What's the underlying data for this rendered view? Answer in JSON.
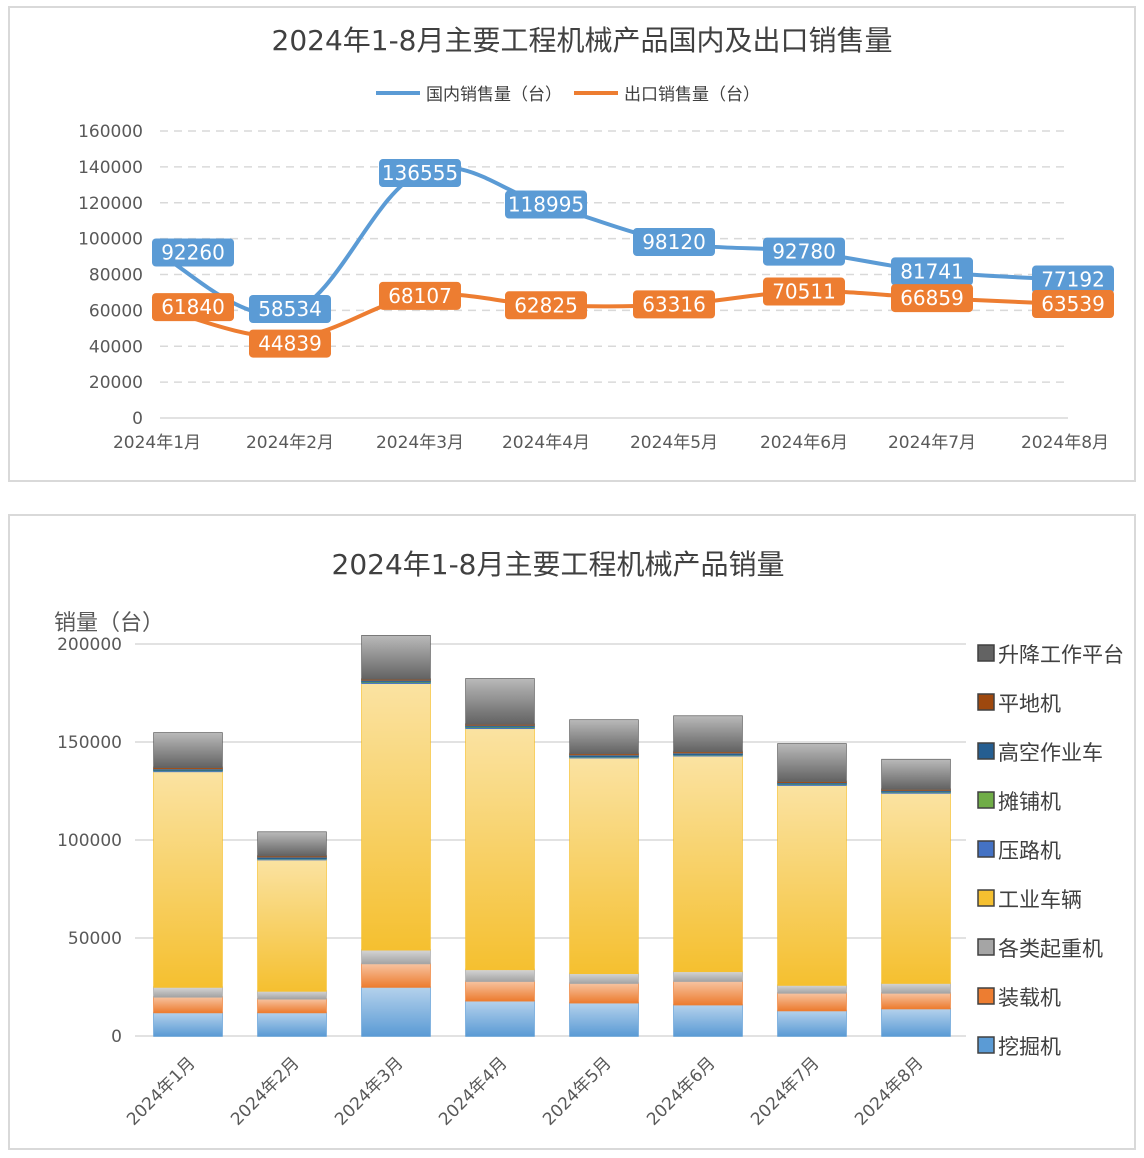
{
  "chart_data": [
    {
      "type": "line",
      "title": "2024年1-8月主要工程机械产品国内及出口销售量",
      "categories": [
        "2024年1月",
        "2024年2月",
        "2024年3月",
        "2024年4月",
        "2024年5月",
        "2024年6月",
        "2024年7月",
        "2024年8月"
      ],
      "series": [
        {
          "name": "国内销售量（台）",
          "color": "#5b9bd5",
          "values": [
            92260,
            58534,
            136555,
            118995,
            98120,
            92780,
            81741,
            77192
          ]
        },
        {
          "name": "出口销售量（台）",
          "color": "#ed7d31",
          "values": [
            61840,
            44839,
            68107,
            62825,
            63316,
            70511,
            66859,
            63539
          ]
        }
      ],
      "ylim": [
        0,
        160000
      ],
      "yticks": [
        "0",
        "20000",
        "40000",
        "60000",
        "80000",
        "100000",
        "120000",
        "140000",
        "160000"
      ],
      "legend": "top",
      "grid": true
    },
    {
      "type": "bar",
      "stacked": true,
      "title": "2024年1-8月主要工程机械产品销量",
      "ylabel": "销量（台）",
      "categories": [
        "2024年1月",
        "2024年2月",
        "2024年3月",
        "2024年4月",
        "2024年5月",
        "2024年6月",
        "2024年7月",
        "2024年8月"
      ],
      "series": [
        {
          "name": "挖掘机",
          "color": "#5b9bd5",
          "values": [
            12000,
            12000,
            25000,
            18000,
            17000,
            16000,
            13000,
            14000
          ]
        },
        {
          "name": "装载机",
          "color": "#ed7d31",
          "values": [
            8000,
            7000,
            12000,
            10000,
            10000,
            12000,
            9000,
            8000
          ]
        },
        {
          "name": "各类起重机",
          "color": "#a5a5a5",
          "values": [
            5000,
            4000,
            7000,
            6000,
            5000,
            5000,
            4000,
            5000
          ]
        },
        {
          "name": "工业车辆",
          "color": "#f5c030",
          "values": [
            110000,
            67000,
            136000,
            123000,
            110000,
            110000,
            102000,
            97000
          ]
        },
        {
          "name": "压路机",
          "color": "#4472c4",
          "values": [
            500,
            500,
            500,
            500,
            500,
            500,
            500,
            500
          ]
        },
        {
          "name": "摊铺机",
          "color": "#70ad47",
          "values": [
            200,
            200,
            300,
            300,
            200,
            200,
            200,
            200
          ]
        },
        {
          "name": "高空作业车",
          "color": "#255e91",
          "values": [
            800,
            800,
            900,
            900,
            900,
            900,
            800,
            800
          ]
        },
        {
          "name": "平地机",
          "color": "#9e480e",
          "values": [
            600,
            500,
            500,
            500,
            600,
            600,
            500,
            500
          ]
        },
        {
          "name": "升降工作平台",
          "color": "#636363",
          "values": [
            17500,
            12000,
            22000,
            23000,
            17000,
            18000,
            19000,
            15000
          ]
        }
      ],
      "ylim": [
        0,
        200000
      ],
      "yticks": [
        "0",
        "50000",
        "100000",
        "150000",
        "200000"
      ],
      "legend": "right",
      "grid": true
    }
  ]
}
